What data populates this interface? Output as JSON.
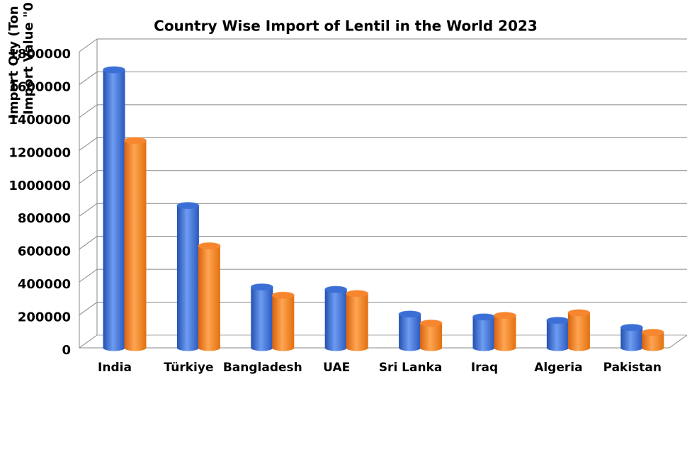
{
  "chart_data": {
    "type": "bar3d",
    "title": "Country Wise Import of Lentil in the World 2023",
    "y_axis_labels": [
      "Import Qty (Ton",
      "Import Value \"0"
    ],
    "categories": [
      "India",
      "Türkiye",
      "Bangladesh",
      "UAE",
      "Sri Lanka",
      "Iraq",
      "Algeria",
      "Pakistan"
    ],
    "series": [
      {
        "color": "#3b6fd6",
        "values": [
          1690000,
          865000,
          370000,
          355000,
          205000,
          188000,
          167000,
          124000
        ]
      },
      {
        "color": "#f7862e",
        "values": [
          1260000,
          620000,
          320000,
          330000,
          150000,
          197000,
          213000,
          94000
        ]
      }
    ],
    "ylim": [
      0,
      1800000
    ],
    "yticks": [
      0,
      200000,
      400000,
      600000,
      800000,
      1000000,
      1200000,
      1400000,
      1600000,
      1800000
    ],
    "grid": true
  }
}
